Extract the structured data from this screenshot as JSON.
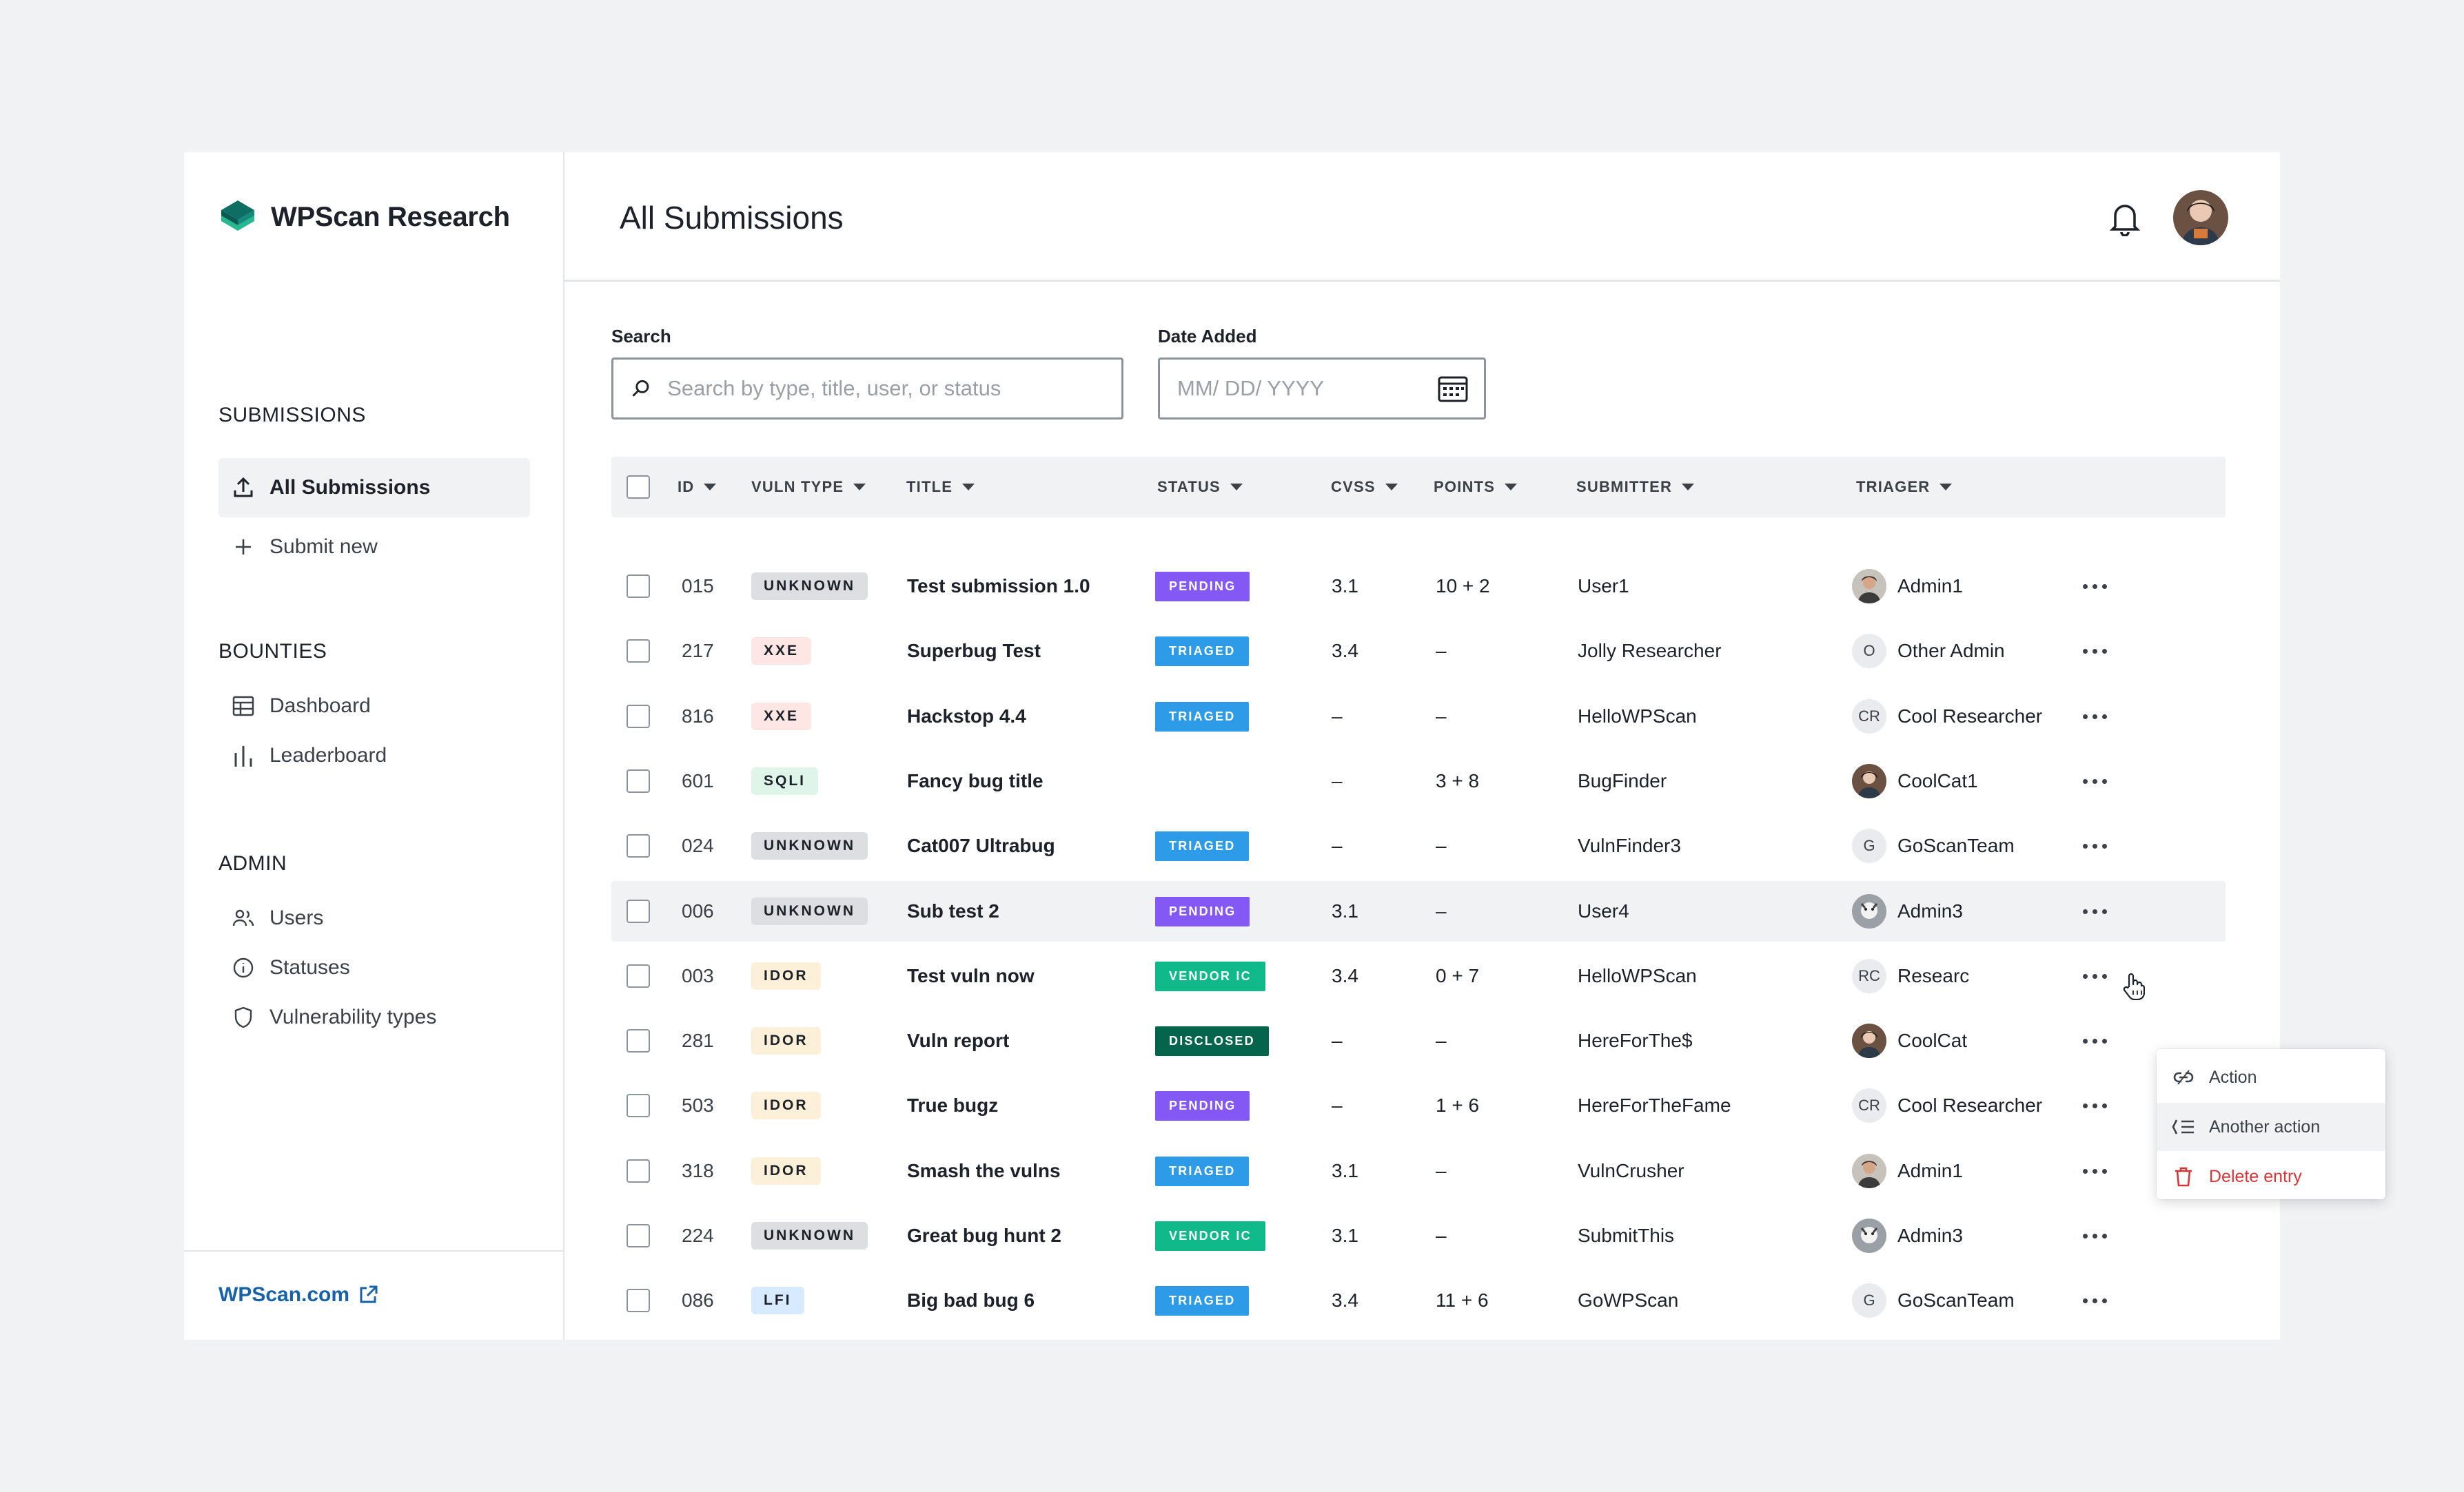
{
  "brand": {
    "name": "WPScan Research"
  },
  "sidebar": {
    "sections": [
      {
        "title": "SUBMISSIONS",
        "items": [
          {
            "label": "All Submissions",
            "icon": "upload-icon",
            "active": true
          },
          {
            "label": "Submit new",
            "icon": "plus-icon"
          }
        ]
      },
      {
        "title": "BOUNTIES",
        "items": [
          {
            "label": "Dashboard",
            "icon": "table-icon"
          },
          {
            "label": "Leaderboard",
            "icon": "bar-chart-icon"
          }
        ]
      },
      {
        "title": "ADMIN",
        "items": [
          {
            "label": "Users",
            "icon": "users-icon"
          },
          {
            "label": "Statuses",
            "icon": "info-icon"
          },
          {
            "label": "Vulnerability types",
            "icon": "shield-icon"
          }
        ]
      }
    ],
    "footer_link": "WPScan.com"
  },
  "header": {
    "title": "All Submissions"
  },
  "filters": {
    "search_label": "Search",
    "search_placeholder": "Search by type, title, user, or status",
    "date_label": "Date Added",
    "date_placeholder": "MM/ DD/ YYYY"
  },
  "table": {
    "columns": [
      "ID",
      "VULN TYPE",
      "TITLE",
      "STATUS",
      "CVSS",
      "POINTS",
      "SUBMITTER",
      "TRIAGER"
    ],
    "rows": [
      {
        "id": "015",
        "type": "UNKNOWN",
        "title": "Test submission 1.0",
        "status": "PENDING",
        "cvss": "3.1",
        "points": "10 + 2",
        "submitter": "User1",
        "triager": "Admin1",
        "triager_avatar": "photo-a"
      },
      {
        "id": "217",
        "type": "XXE",
        "title": "Superbug Test",
        "status": "TRIAGED",
        "cvss": "3.4",
        "points": "–",
        "submitter": "Jolly Researcher",
        "triager": "Other Admin",
        "triager_avatar": "O"
      },
      {
        "id": "816",
        "type": "XXE",
        "title": "Hackstop 4.4",
        "status": "TRIAGED",
        "cvss": "–",
        "points": "–",
        "submitter": "HelloWPScan",
        "triager": "Cool Researcher",
        "triager_avatar": "CR"
      },
      {
        "id": "601",
        "type": "SQLI",
        "title": "Fancy bug title",
        "status": "",
        "cvss": "–",
        "points": "3 + 8",
        "submitter": "BugFinder",
        "triager": "CoolCat1",
        "triager_avatar": "photo-b"
      },
      {
        "id": "024",
        "type": "UNKNOWN",
        "title": "Cat007 Ultrabug",
        "status": "TRIAGED",
        "cvss": "–",
        "points": "–",
        "submitter": "VulnFinder3",
        "triager": "GoScanTeam",
        "triager_avatar": "G"
      },
      {
        "id": "006",
        "type": "UNKNOWN",
        "title": "Sub test 2",
        "status": "PENDING",
        "cvss": "3.1",
        "points": "–",
        "submitter": "User4",
        "triager": "Admin3",
        "triager_avatar": "photo-c"
      },
      {
        "id": "003",
        "type": "IDOR",
        "title": "Test vuln now",
        "status": "VENDOR IC",
        "cvss": "3.4",
        "points": "0 + 7",
        "submitter": "HelloWPScan",
        "triager": "Researc",
        "triager_avatar": "RC"
      },
      {
        "id": "281",
        "type": "IDOR",
        "title": "Vuln report",
        "status": "DISCLOSED",
        "cvss": "–",
        "points": "–",
        "submitter": "HereForThe$",
        "triager": "CoolCat",
        "triager_avatar": "photo-b"
      },
      {
        "id": "503",
        "type": "IDOR",
        "title": "True bugz",
        "status": "PENDING",
        "cvss": "–",
        "points": "1 + 6",
        "submitter": "HereForTheFame",
        "triager": "Cool Researcher",
        "triager_avatar": "CR"
      },
      {
        "id": "318",
        "type": "IDOR",
        "title": "Smash the vulns",
        "status": "TRIAGED",
        "cvss": "3.1",
        "points": "–",
        "submitter": "VulnCrusher",
        "triager": "Admin1",
        "triager_avatar": "photo-a"
      },
      {
        "id": "224",
        "type": "UNKNOWN",
        "title": "Great bug hunt 2",
        "status": "VENDOR IC",
        "cvss": "3.1",
        "points": "–",
        "submitter": "SubmitThis",
        "triager": "Admin3",
        "triager_avatar": "photo-c"
      },
      {
        "id": "086",
        "type": "LFI",
        "title": "Big bad bug 6",
        "status": "TRIAGED",
        "cvss": "3.4",
        "points": "11 + 6",
        "submitter": "GoWPScan",
        "triager": "GoScanTeam",
        "triager_avatar": "G"
      }
    ]
  },
  "row_menu": {
    "items": [
      {
        "label": "Action",
        "icon": "link-icon"
      },
      {
        "label": "Another action",
        "icon": "list-icon"
      },
      {
        "label": "Delete entry",
        "icon": "trash-icon"
      }
    ]
  },
  "colors": {
    "pending": "#8458f4",
    "triaged": "#2e9be8",
    "vendor": "#10b98a",
    "disclosed": "#05654c",
    "link": "#1862a8",
    "danger": "#d63638",
    "brand_dark": "#0e6e64",
    "brand_light": "#26b88e"
  }
}
